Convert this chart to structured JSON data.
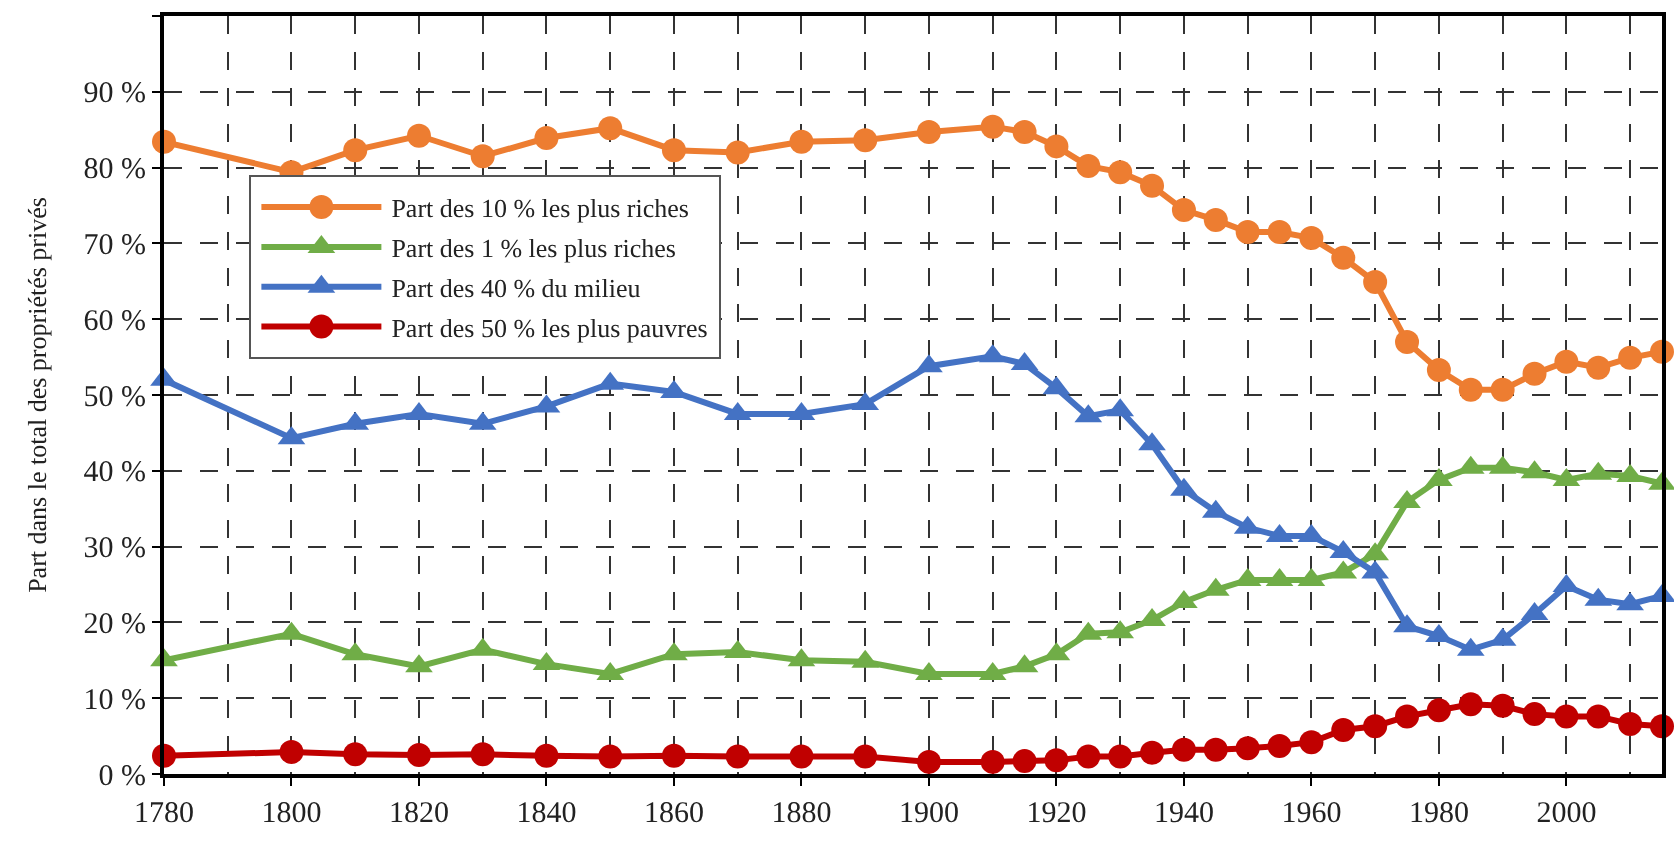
{
  "chart_data": {
    "type": "line",
    "ylabel": "Part dans le total des propriétés privés",
    "x": [
      1780,
      1800,
      1810,
      1820,
      1830,
      1840,
      1850,
      1860,
      1870,
      1880,
      1890,
      1900,
      1910,
      1915,
      1920,
      1925,
      1930,
      1935,
      1940,
      1945,
      1950,
      1955,
      1960,
      1965,
      1970,
      1975,
      1980,
      1985,
      1990,
      1995,
      2000,
      2005,
      2010,
      2015
    ],
    "series": [
      {
        "name": "Part des 10 % les plus riches",
        "color": "#ed7d31",
        "marker": "circle",
        "values": [
          83.4,
          79.4,
          82.3,
          84.2,
          81.5,
          83.9,
          85.2,
          82.3,
          82,
          83.4,
          83.6,
          84.7,
          85.4,
          84.7,
          82.8,
          80.2,
          79.4,
          77.6,
          74.4,
          73.1,
          71.5,
          71.5,
          70.7,
          68.1,
          64.9,
          57,
          53.3,
          50.7,
          50.7,
          52.8,
          54.4,
          53.6,
          54.9,
          55.7
        ]
      },
      {
        "name": "Part des 1 % les plus riches",
        "color": "#70ad47",
        "marker": "triangle",
        "values": [
          15,
          18.5,
          15.8,
          14.2,
          16.4,
          14.5,
          13.2,
          15.8,
          16.1,
          15,
          14.8,
          13.2,
          13.2,
          14.2,
          15.8,
          18.5,
          18.7,
          20.3,
          22.7,
          24.3,
          25.6,
          25.6,
          25.6,
          26.6,
          29,
          35.9,
          38.8,
          40.4,
          40.4,
          39.8,
          38.8,
          39.6,
          39.3,
          38.3
        ]
      },
      {
        "name": "Part des 40 % du milieu",
        "color": "#4472c4",
        "marker": "triangle",
        "values": [
          52,
          44.3,
          46.2,
          47.5,
          46.2,
          48.5,
          51.5,
          50.4,
          47.5,
          47.5,
          48.8,
          53.8,
          55.1,
          54.1,
          50.9,
          47.2,
          48,
          43.5,
          37.5,
          34.6,
          32.5,
          31.4,
          31.4,
          29.3,
          26.6,
          19.5,
          18.2,
          16.4,
          17.7,
          21.1,
          24.8,
          23,
          22.4,
          23.5
        ]
      },
      {
        "name": "Part des 50 % les plus pauvres",
        "color": "#c00000",
        "marker": "circle",
        "values": [
          2.4,
          2.9,
          2.6,
          2.5,
          2.6,
          2.4,
          2.3,
          2.4,
          2.3,
          2.3,
          2.3,
          1.6,
          1.6,
          1.7,
          1.8,
          2.3,
          2.3,
          2.8,
          3.2,
          3.2,
          3.4,
          3.7,
          4.2,
          5.8,
          6.3,
          7.6,
          8.4,
          9.2,
          9,
          7.9,
          7.6,
          7.6,
          6.6,
          6.3
        ]
      }
    ],
    "xlim": [
      1780,
      2015
    ],
    "xticks": [
      1780,
      1800,
      1820,
      1840,
      1860,
      1880,
      1900,
      1920,
      1940,
      1960,
      1980,
      2000
    ],
    "ylim": [
      0,
      100
    ],
    "yticks": [
      {
        "value": 0,
        "label": "0 %"
      },
      {
        "value": 10,
        "label": "10 %"
      },
      {
        "value": 20,
        "label": "20 %"
      },
      {
        "value": 30,
        "label": "30 %"
      },
      {
        "value": 40,
        "label": "40 %"
      },
      {
        "value": 50,
        "label": "50 %"
      },
      {
        "value": 60,
        "label": "60 %"
      },
      {
        "value": 70,
        "label": "70 %"
      },
      {
        "value": 80,
        "label": "80 %"
      },
      {
        "value": 90,
        "label": "90 %"
      },
      {
        "value": 100,
        "label": null
      }
    ],
    "grid": true,
    "legend": "top left",
    "line_style": "solid"
  }
}
